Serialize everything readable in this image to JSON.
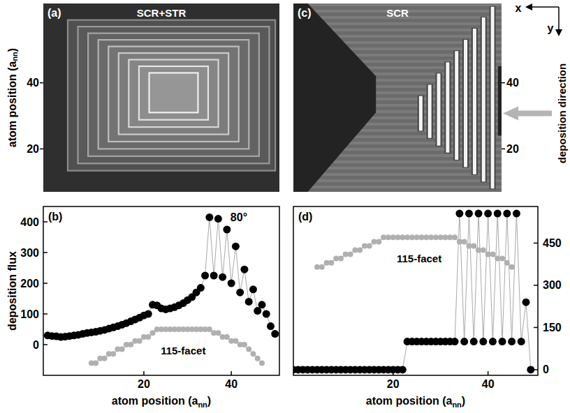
{
  "chart_data": [
    {
      "type": "image",
      "panel_label": "(a)",
      "title": "SCR+STR",
      "ylabel": {
        "text": "atom position (a",
        "subscript": "nn",
        "close": ")"
      },
      "xlim": [
        0,
        58
      ],
      "ylim": [
        7,
        64
      ],
      "yticks": [
        20,
        40
      ],
      "terraces": [
        {
          "x": [
            26,
            38
          ],
          "y": [
            31,
            43
          ]
        },
        {
          "x": [
            23.5,
            40.5
          ],
          "y": [
            28.8,
            45
          ]
        },
        {
          "x": [
            21,
            43
          ],
          "y": [
            26.6,
            47
          ]
        },
        {
          "x": [
            18.5,
            45.5
          ],
          "y": [
            24.4,
            49
          ]
        },
        {
          "x": [
            16,
            48
          ],
          "y": [
            22.2,
            51
          ]
        },
        {
          "x": [
            13.5,
            50.5
          ],
          "y": [
            20,
            53
          ]
        },
        {
          "x": [
            11,
            53
          ],
          "y": [
            17.8,
            55
          ]
        },
        {
          "x": [
            8.5,
            55.5
          ],
          "y": [
            15.6,
            57
          ]
        },
        {
          "x": [
            6,
            57
          ],
          "y": [
            13.4,
            59
          ]
        }
      ]
    },
    {
      "type": "line",
      "panel_label": "(b)",
      "ylabel": "deposition flux",
      "xlabel": {
        "text": "atom position (a",
        "subscript": "nn",
        "close": ")"
      },
      "xlim": [
        -3,
        51
      ],
      "ylim": [
        -100,
        450
      ],
      "xticks": [
        20,
        40
      ],
      "yticks": [
        0,
        100,
        200,
        300,
        400
      ],
      "x": [
        -2,
        -1,
        0,
        1,
        2,
        3,
        4,
        5,
        6,
        7,
        8,
        9,
        10,
        11,
        12,
        13,
        14,
        15,
        16,
        17,
        18,
        19,
        20,
        21,
        22,
        23,
        24,
        25,
        26,
        27,
        28,
        29,
        30,
        31,
        32,
        33,
        34,
        35,
        36,
        37,
        38,
        39,
        40,
        41,
        42,
        43,
        44,
        45,
        46,
        47,
        48,
        49,
        50
      ],
      "series": [
        {
          "name": "80°",
          "color": "#000000",
          "marker": "circle",
          "values": [
            30,
            28,
            27,
            25,
            26,
            28,
            30,
            32,
            35,
            38,
            40,
            42,
            45,
            48,
            52,
            56,
            60,
            65,
            70,
            76,
            82,
            88,
            95,
            100,
            130,
            128,
            118,
            115,
            118,
            122,
            128,
            135,
            145,
            155,
            170,
            185,
            225,
            415,
            225,
            410,
            220,
            375,
            200,
            320,
            170,
            245,
            140,
            180,
            110,
            130,
            100,
            60,
            35
          ]
        },
        {
          "name": "115-facet",
          "color": "#b0b0b0",
          "marker": "circle",
          "values": [
            null,
            null,
            null,
            null,
            null,
            null,
            null,
            null,
            null,
            null,
            -60,
            -60,
            -45,
            -45,
            -30,
            -30,
            -15,
            -15,
            0,
            0,
            12,
            12,
            25,
            25,
            38,
            50,
            50,
            50,
            50,
            50,
            50,
            50,
            50,
            50,
            50,
            50,
            50,
            50,
            38,
            38,
            25,
            25,
            12,
            12,
            0,
            0,
            -15,
            -30,
            -45,
            -60,
            null,
            null,
            null
          ]
        }
      ]
    },
    {
      "type": "image",
      "panel_label": "(c)",
      "title": "SCR",
      "xlim": [
        0,
        58
      ],
      "y2lim": [
        7,
        64
      ],
      "y2ticks": [
        20,
        40
      ],
      "x_arrow_label": "x",
      "y_arrow_label": "y",
      "annotation": "deposition direction",
      "shadows": [
        {
          "points": [
            [
              0,
              64
            ],
            [
              4,
              64
            ],
            [
              23,
              42
            ],
            [
              23,
              31
            ],
            [
              4,
              7
            ],
            [
              0,
              7
            ]
          ]
        },
        {
          "points": [
            [
              57,
              45
            ],
            [
              58,
              45
            ],
            [
              58,
              24
            ],
            [
              57,
              24
            ]
          ]
        }
      ],
      "stripes": [
        {
          "x": 35,
          "y": [
            25.5,
            36
          ]
        },
        {
          "x": 37.5,
          "y": [
            23.3,
            39.4
          ]
        },
        {
          "x": 40,
          "y": [
            21,
            42.8
          ]
        },
        {
          "x": 42.5,
          "y": [
            18.9,
            46.2
          ]
        },
        {
          "x": 45,
          "y": [
            16.7,
            49.6
          ]
        },
        {
          "x": 47.5,
          "y": [
            14.5,
            53
          ]
        },
        {
          "x": 50,
          "y": [
            12.3,
            56.4
          ]
        },
        {
          "x": 52.5,
          "y": [
            10.1,
            59.8
          ]
        },
        {
          "x": 55,
          "y": [
            8,
            63
          ]
        }
      ]
    },
    {
      "type": "line",
      "panel_label": "(d)",
      "xlabel": {
        "text": "atom position (a",
        "subscript": "nn",
        "close": ")"
      },
      "xlim": [
        -1,
        50.5
      ],
      "y2lim": [
        -20,
        580
      ],
      "xticks": [
        20,
        40
      ],
      "y2ticks": [
        0,
        150,
        300,
        450
      ],
      "x": [
        -1,
        0,
        1,
        2,
        3,
        4,
        5,
        6,
        7,
        8,
        9,
        10,
        11,
        12,
        13,
        14,
        15,
        16,
        17,
        18,
        19,
        20,
        21,
        22,
        23,
        24,
        25,
        26,
        27,
        28,
        29,
        30,
        31,
        32,
        33,
        34,
        35,
        36,
        37,
        38,
        39,
        40,
        41,
        42,
        43,
        44,
        45,
        46,
        47,
        48,
        49
      ],
      "series": [
        {
          "color": "#000000",
          "marker": "circle",
          "axis": "y2",
          "values": [
            0,
            0,
            0,
            0,
            0,
            0,
            0,
            0,
            0,
            0,
            0,
            0,
            0,
            0,
            0,
            0,
            0,
            0,
            0,
            0,
            0,
            0,
            0,
            0,
            100,
            100,
            100,
            100,
            100,
            100,
            100,
            100,
            100,
            100,
            100,
            555,
            100,
            555,
            100,
            555,
            100,
            555,
            100,
            555,
            100,
            555,
            100,
            555,
            100,
            240,
            0
          ]
        },
        {
          "name": "115-facet",
          "color": "#b0b0b0",
          "marker": "circle",
          "axis": "y2",
          "values": [
            null,
            null,
            null,
            null,
            null,
            365,
            365,
            380,
            380,
            395,
            395,
            410,
            410,
            425,
            425,
            440,
            440,
            455,
            455,
            470,
            470,
            470,
            470,
            470,
            470,
            470,
            470,
            470,
            470,
            470,
            470,
            470,
            470,
            470,
            470,
            455,
            455,
            440,
            440,
            425,
            425,
            410,
            410,
            395,
            395,
            380,
            365,
            null,
            null,
            null,
            null
          ]
        }
      ]
    }
  ]
}
